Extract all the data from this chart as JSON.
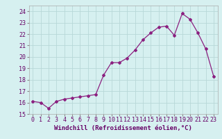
{
  "x": [
    0,
    1,
    2,
    3,
    4,
    5,
    6,
    7,
    8,
    9,
    10,
    11,
    12,
    13,
    14,
    15,
    16,
    17,
    18,
    19,
    20,
    21,
    22,
    23
  ],
  "y": [
    16.1,
    16.0,
    15.5,
    16.1,
    16.3,
    16.4,
    16.5,
    16.6,
    16.7,
    18.4,
    19.5,
    19.5,
    19.9,
    20.6,
    21.5,
    22.1,
    22.6,
    22.7,
    21.9,
    23.8,
    23.3,
    22.1,
    20.7,
    18.3
  ],
  "line_color": "#8b2080",
  "marker": "D",
  "markersize": 2.0,
  "linewidth": 0.9,
  "bg_color": "#d6f0f0",
  "grid_color": "#b8d8d8",
  "xlabel": "Windchill (Refroidissement éolien,°C)",
  "xlabel_fontsize": 6.5,
  "tick_fontsize": 6.0,
  "xlim": [
    -0.5,
    23.5
  ],
  "ylim": [
    15,
    24.5
  ],
  "yticks": [
    15,
    16,
    17,
    18,
    19,
    20,
    21,
    22,
    23,
    24
  ],
  "xticks": [
    0,
    1,
    2,
    3,
    4,
    5,
    6,
    7,
    8,
    9,
    10,
    11,
    12,
    13,
    14,
    15,
    16,
    17,
    18,
    19,
    20,
    21,
    22,
    23
  ]
}
